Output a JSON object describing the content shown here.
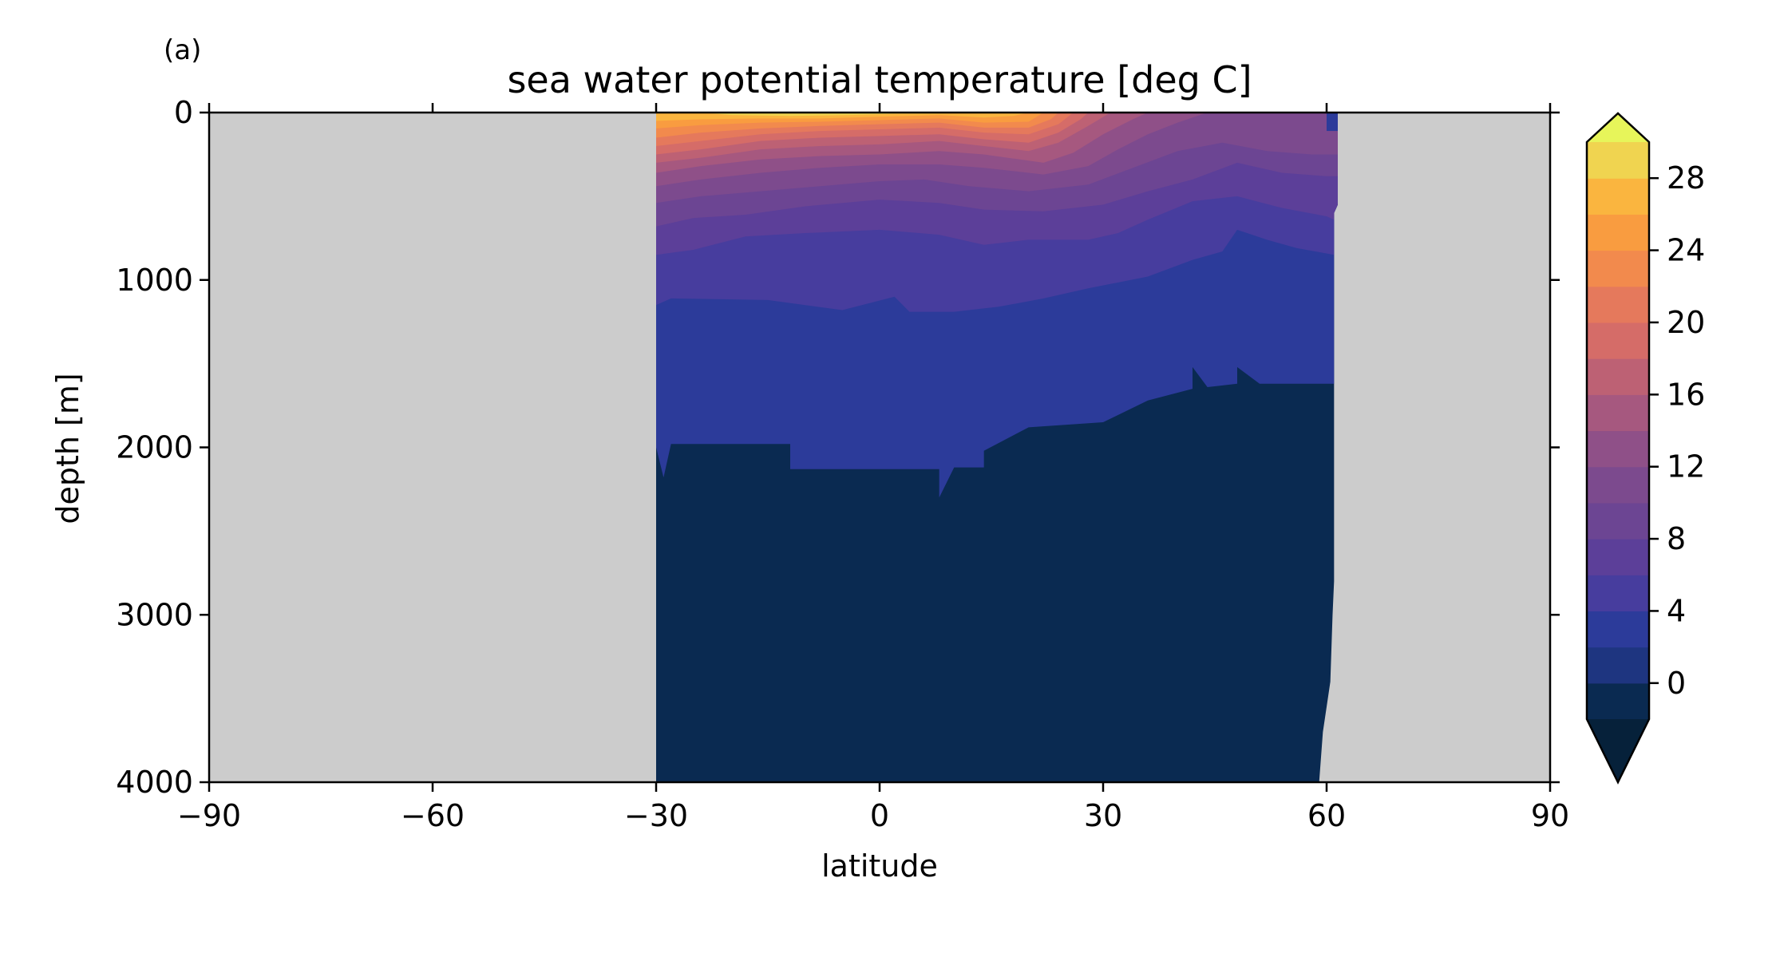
{
  "panel_label": "(a)",
  "chart_data": {
    "type": "heatmap",
    "title": "sea water potential temperature [deg C]",
    "xlabel": "latitude",
    "ylabel": "depth [m]",
    "xlim": [
      -90,
      90
    ],
    "ylim": [
      4000,
      0
    ],
    "y_inverted": true,
    "x_ticks": [
      -90,
      -60,
      -30,
      0,
      30,
      60,
      90
    ],
    "x_tick_labels": [
      "−90",
      "−60",
      "−30",
      "0",
      "30",
      "60",
      "90"
    ],
    "y_ticks": [
      0,
      1000,
      2000,
      3000,
      4000
    ],
    "y_tick_labels": [
      "0",
      "1000",
      "2000",
      "3000",
      "4000"
    ],
    "missing_color": "#cccccc",
    "ocean_extent": {
      "lat_min": -30,
      "lat_max_by_depth": [
        [
          0,
          61.5
        ],
        [
          550,
          61.5
        ],
        [
          600,
          61
        ],
        [
          2800,
          61
        ],
        [
          3000,
          60.8
        ],
        [
          3400,
          60.5
        ],
        [
          3700,
          59.5
        ],
        [
          4000,
          59
        ]
      ]
    },
    "colorbar": {
      "extend": "both",
      "levels": [
        -2,
        0,
        2,
        4,
        6,
        8,
        10,
        12,
        14,
        16,
        18,
        20,
        22,
        24,
        26,
        28,
        30
      ],
      "colors": [
        "#0a2a51",
        "#1e3580",
        "#2c3b9a",
        "#473d9e",
        "#5c3f99",
        "#6c4593",
        "#7c4a8e",
        "#8f5088",
        "#a6587f",
        "#bd6174",
        "#d56c68",
        "#e5795c",
        "#f28a4d",
        "#f99c40",
        "#fab53f",
        "#f0d450"
      ],
      "under_color": "#06213a",
      "over_color": "#e7f55a",
      "tick_values": [
        0,
        4,
        8,
        12,
        16,
        20,
        24,
        28
      ],
      "tick_labels": [
        "0",
        "4",
        "8",
        "12",
        "16",
        "20",
        "24",
        "28"
      ]
    },
    "isotherms": [
      {
        "value": 2,
        "points": [
          [
            -30,
            2000
          ],
          [
            -29,
            2180
          ],
          [
            -28,
            1980
          ],
          [
            -12,
            1980
          ],
          [
            -12,
            2130
          ],
          [
            8,
            2130
          ],
          [
            8,
            2300
          ],
          [
            10,
            2120
          ],
          [
            14,
            2120
          ],
          [
            14,
            2020
          ],
          [
            20,
            1880
          ],
          [
            30,
            1850
          ],
          [
            36,
            1720
          ],
          [
            42,
            1650
          ],
          [
            42,
            1520
          ],
          [
            44,
            1640
          ],
          [
            48,
            1620
          ],
          [
            48,
            1520
          ],
          [
            51,
            1620
          ],
          [
            61,
            1620
          ]
        ]
      },
      {
        "value": 4,
        "points": [
          [
            -30,
            1150
          ],
          [
            -28,
            1110
          ],
          [
            -15,
            1120
          ],
          [
            -5,
            1180
          ],
          [
            2,
            1100
          ],
          [
            4,
            1190
          ],
          [
            10,
            1190
          ],
          [
            16,
            1160
          ],
          [
            22,
            1110
          ],
          [
            28,
            1050
          ],
          [
            36,
            980
          ],
          [
            42,
            880
          ],
          [
            46,
            830
          ],
          [
            48,
            700
          ],
          [
            52,
            760
          ],
          [
            56,
            810
          ],
          [
            61,
            850
          ]
        ]
      },
      {
        "value": 6,
        "points": [
          [
            -30,
            850
          ],
          [
            -25,
            820
          ],
          [
            -18,
            740
          ],
          [
            -10,
            720
          ],
          [
            0,
            700
          ],
          [
            8,
            730
          ],
          [
            14,
            790
          ],
          [
            20,
            760
          ],
          [
            28,
            760
          ],
          [
            32,
            720
          ],
          [
            36,
            640
          ],
          [
            42,
            530
          ],
          [
            48,
            500
          ],
          [
            54,
            570
          ],
          [
            60,
            620
          ],
          [
            61,
            640
          ]
        ]
      },
      {
        "value": 8,
        "points": [
          [
            -30,
            680
          ],
          [
            -25,
            630
          ],
          [
            -18,
            610
          ],
          [
            -10,
            560
          ],
          [
            0,
            520
          ],
          [
            8,
            540
          ],
          [
            14,
            580
          ],
          [
            22,
            590
          ],
          [
            30,
            550
          ],
          [
            36,
            470
          ],
          [
            42,
            400
          ],
          [
            48,
            300
          ],
          [
            54,
            360
          ],
          [
            60,
            380
          ]
        ]
      },
      {
        "value": 10,
        "points": [
          [
            -30,
            540
          ],
          [
            -24,
            500
          ],
          [
            -16,
            470
          ],
          [
            -8,
            440
          ],
          [
            0,
            410
          ],
          [
            6,
            400
          ],
          [
            12,
            440
          ],
          [
            20,
            470
          ],
          [
            28,
            430
          ],
          [
            34,
            330
          ],
          [
            40,
            230
          ],
          [
            46,
            180
          ],
          [
            52,
            230
          ],
          [
            58,
            250
          ]
        ]
      },
      {
        "value": 12,
        "points": [
          [
            -30,
            440
          ],
          [
            -24,
            400
          ],
          [
            -16,
            360
          ],
          [
            -8,
            330
          ],
          [
            0,
            310
          ],
          [
            8,
            310
          ],
          [
            14,
            330
          ],
          [
            22,
            370
          ],
          [
            28,
            320
          ],
          [
            32,
            220
          ],
          [
            36,
            130
          ],
          [
            40,
            60
          ],
          [
            44,
            0
          ]
        ]
      },
      {
        "value": 14,
        "points": [
          [
            -30,
            360
          ],
          [
            -24,
            320
          ],
          [
            -16,
            280
          ],
          [
            -8,
            260
          ],
          [
            0,
            250
          ],
          [
            8,
            230
          ],
          [
            14,
            250
          ],
          [
            22,
            300
          ],
          [
            26,
            240
          ],
          [
            30,
            130
          ],
          [
            34,
            40
          ],
          [
            36,
            0
          ]
        ]
      },
      {
        "value": 16,
        "points": [
          [
            -30,
            300
          ],
          [
            -24,
            270
          ],
          [
            -16,
            220
          ],
          [
            -8,
            200
          ],
          [
            0,
            190
          ],
          [
            8,
            170
          ],
          [
            14,
            200
          ],
          [
            20,
            230
          ],
          [
            24,
            180
          ],
          [
            28,
            80
          ],
          [
            31,
            0
          ]
        ]
      },
      {
        "value": 18,
        "points": [
          [
            -30,
            250
          ],
          [
            -24,
            220
          ],
          [
            -16,
            170
          ],
          [
            -8,
            150
          ],
          [
            0,
            140
          ],
          [
            8,
            130
          ],
          [
            14,
            160
          ],
          [
            20,
            180
          ],
          [
            24,
            120
          ],
          [
            27,
            40
          ],
          [
            28,
            0
          ]
        ]
      },
      {
        "value": 20,
        "points": [
          [
            -30,
            200
          ],
          [
            -24,
            170
          ],
          [
            -16,
            130
          ],
          [
            -8,
            110
          ],
          [
            0,
            100
          ],
          [
            8,
            90
          ],
          [
            14,
            120
          ],
          [
            20,
            130
          ],
          [
            24,
            70
          ],
          [
            26,
            0
          ]
        ]
      },
      {
        "value": 22,
        "points": [
          [
            -30,
            150
          ],
          [
            -24,
            120
          ],
          [
            -16,
            95
          ],
          [
            -8,
            80
          ],
          [
            0,
            70
          ],
          [
            8,
            60
          ],
          [
            14,
            90
          ],
          [
            20,
            90
          ],
          [
            23,
            40
          ],
          [
            24,
            0
          ]
        ]
      },
      {
        "value": 24,
        "points": [
          [
            -30,
            95
          ],
          [
            -24,
            75
          ],
          [
            -16,
            60
          ],
          [
            -8,
            55
          ],
          [
            0,
            45
          ],
          [
            8,
            35
          ],
          [
            14,
            60
          ],
          [
            20,
            55
          ],
          [
            22,
            0
          ]
        ]
      },
      {
        "value": 26,
        "points": [
          [
            -30,
            50
          ],
          [
            -24,
            40
          ],
          [
            -16,
            35
          ],
          [
            -8,
            35
          ],
          [
            0,
            25
          ],
          [
            8,
            15
          ],
          [
            14,
            30
          ],
          [
            18,
            20
          ],
          [
            20,
            0
          ]
        ]
      },
      {
        "value": 28,
        "points": [
          [
            -24,
            0
          ],
          [
            -20,
            15
          ],
          [
            -12,
            20
          ],
          [
            -4,
            15
          ],
          [
            2,
            8
          ],
          [
            10,
            5
          ],
          [
            16,
            0
          ]
        ]
      }
    ],
    "cold_patch_lat": [
      60,
      61.5
    ],
    "cold_patch_depth": [
      0,
      110
    ]
  }
}
